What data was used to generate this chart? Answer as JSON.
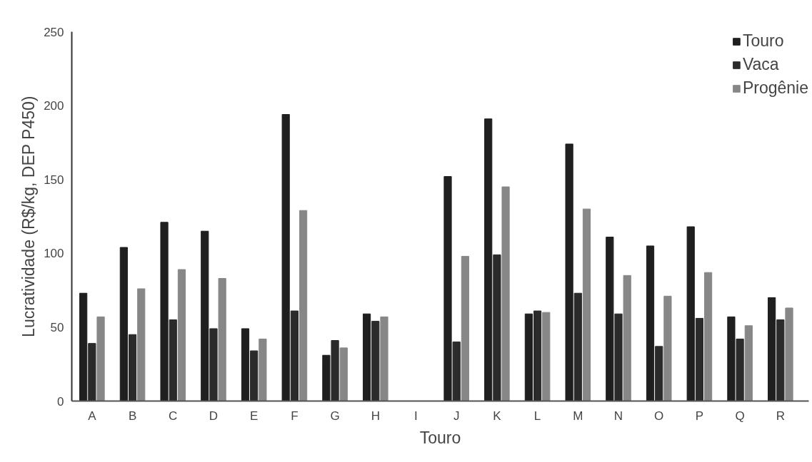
{
  "chart_data": {
    "type": "bar",
    "xlabel": "Touro",
    "ylabel": "Lucratividade (R$/kg, DEP P450)",
    "categories": [
      "A",
      "B",
      "C",
      "D",
      "E",
      "F",
      "G",
      "H",
      "I",
      "J",
      "K",
      "L",
      "M",
      "N",
      "O",
      "P",
      "Q",
      "R"
    ],
    "series": [
      {
        "name": "Touro",
        "color": "#1f1f1f",
        "values": [
          73,
          104,
          121,
          115,
          49,
          194,
          31,
          59,
          null,
          152,
          191,
          59,
          174,
          111,
          105,
          118,
          57,
          70
        ]
      },
      {
        "name": "Vaca",
        "color": "#2b2b2b",
        "values": [
          39,
          45,
          55,
          49,
          34,
          61,
          41,
          54,
          null,
          40,
          99,
          61,
          73,
          59,
          37,
          56,
          42,
          55
        ]
      },
      {
        "name": "Progênie",
        "color": "#878787",
        "values": [
          57,
          76,
          89,
          83,
          42,
          129,
          36,
          57,
          null,
          98,
          145,
          60,
          130,
          85,
          71,
          87,
          51,
          63
        ]
      }
    ],
    "ylim": [
      0,
      250
    ],
    "yticks": [
      0,
      50,
      100,
      150,
      200,
      250
    ],
    "grid": false,
    "legend": "top right"
  }
}
